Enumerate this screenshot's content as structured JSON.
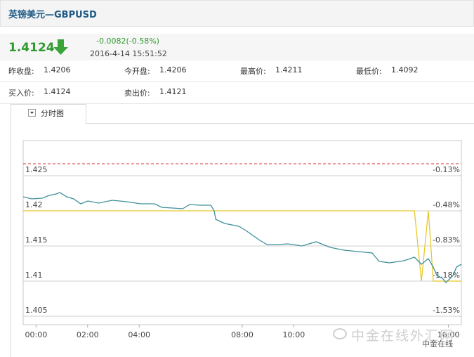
{
  "header": {
    "title": "英镑美元—GBPUSD"
  },
  "quote": {
    "price": "1.4124",
    "change": "-0.0082(-0.58%)",
    "time": "2016-4-14 15:51:52"
  },
  "stats": [
    [
      {
        "label": "昨收盘:",
        "value": "1.4206"
      },
      {
        "label": "今开盘:",
        "value": "1.4206"
      },
      {
        "label": "最高价:",
        "value": "1.4211"
      },
      {
        "label": "最低价:",
        "value": "1.4092"
      }
    ],
    [
      {
        "label": "买入价:",
        "value": "1.4124"
      },
      {
        "label": "卖出价:",
        "value": "1.4121"
      }
    ]
  ],
  "tab": "分时图",
  "watermark": [
    "中金在线外汇网",
    "中金在线"
  ],
  "chart_data": {
    "type": "line",
    "x": [
      -0.5,
      -0.17,
      0.24,
      0.51,
      0.78,
      0.92,
      1.19,
      1.46,
      1.73,
      2.01,
      2.42,
      2.96,
      3.51,
      4.05,
      4.6,
      4.87,
      5.28,
      5.69,
      5.96,
      6.37,
      6.78,
      6.91,
      6.97,
      7.32,
      7.87,
      8.14,
      8.41,
      8.68,
      8.96,
      9.36,
      9.77,
      10.32,
      10.86,
      11.41,
      11.95,
      12.5,
      13.04,
      13.31,
      13.72,
      14.27,
      14.68,
      14.95,
      15.22,
      15.41,
      15.55,
      15.77,
      15.9,
      16.18,
      16.31,
      16.5
    ],
    "series": [
      {
        "color": "#3f8f9a",
        "values": [
          1.422,
          1.4217,
          1.4218,
          1.4222,
          1.4224,
          1.4226,
          1.422,
          1.4217,
          1.421,
          1.4214,
          1.4211,
          1.4215,
          1.4213,
          1.421,
          1.421,
          1.4205,
          1.4204,
          1.4203,
          1.4209,
          1.4208,
          1.4208,
          1.42,
          1.4188,
          1.4182,
          1.4178,
          1.4172,
          1.4165,
          1.4158,
          1.4152,
          1.4152,
          1.4153,
          1.415,
          1.4156,
          1.4148,
          1.4144,
          1.4142,
          1.414,
          1.4128,
          1.4126,
          1.4129,
          1.4134,
          1.4124,
          1.4132,
          1.412,
          1.4108,
          1.4104,
          1.4098,
          1.4108,
          1.412,
          1.4124
        ]
      },
      {
        "color": "#e8c82a",
        "values": [
          1.42,
          1.42,
          1.42,
          1.42,
          1.42,
          1.42,
          1.42,
          1.42,
          1.42,
          1.42,
          1.42,
          1.42,
          1.42,
          1.42,
          1.42,
          1.42,
          1.42,
          1.42,
          1.42,
          1.42,
          1.42,
          1.42,
          1.42,
          1.42,
          1.42,
          1.42,
          1.42,
          1.42,
          1.42,
          1.42,
          1.42,
          1.42,
          1.42,
          1.42,
          1.42,
          1.42,
          1.42,
          1.42,
          1.42,
          1.42,
          1.42,
          1.41,
          1.42,
          1.41,
          1.41,
          1.41,
          1.41,
          1.41,
          1.41,
          1.41
        ]
      }
    ],
    "xlim": [
      -0.5,
      16.5
    ],
    "xticks": [
      {
        "value": 0,
        "label": "00:00"
      },
      {
        "value": 2,
        "label": "02:00"
      },
      {
        "value": 4,
        "label": "04:00"
      },
      {
        "value": 8,
        "label": "08:00"
      },
      {
        "value": 10,
        "label": "10:00"
      },
      {
        "value": 16,
        "label": "16:00"
      }
    ],
    "ylim": [
      1.4038,
      1.43
    ],
    "yticks": [
      1.425,
      1.42,
      1.415,
      1.41,
      1.405
    ],
    "y2lim": [
      -1.614,
      0.22
    ],
    "y2ticks": [
      {
        "value": -0.13,
        "label": "-0.13%"
      },
      {
        "value": -0.48,
        "label": "-0.48%"
      },
      {
        "value": -0.83,
        "label": "-0.83%"
      },
      {
        "value": -1.18,
        "label": "-1.18%"
      },
      {
        "value": -1.53,
        "label": "-1.53%"
      }
    ],
    "grid": true
  }
}
